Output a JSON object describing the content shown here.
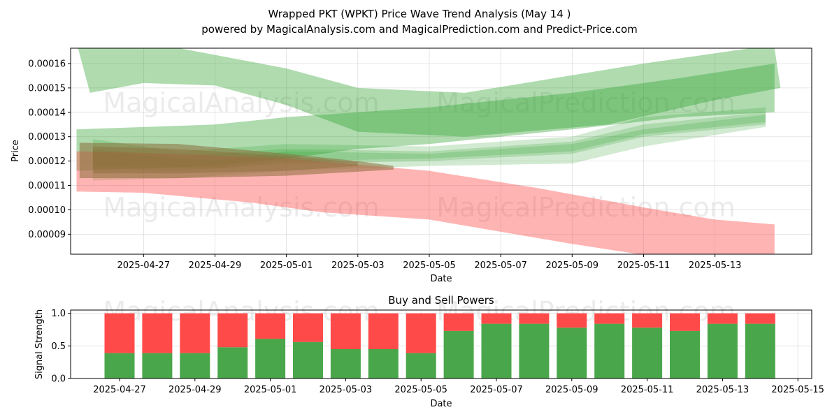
{
  "title_line1": "Wrapped PKT (WPKT) Price Wave Trend Analysis (May 14 )",
  "title_line2": "powered by MagicalAnalysis.com and MagicalPrediction.com and Predict-Price.com",
  "watermarks": [
    "MagicalAnalysis.com",
    "MagicalPrediction.com"
  ],
  "colors": {
    "green": "#2ca02c",
    "red": "#ff4d4d",
    "brown": "#8b6d3a",
    "bar_green": "#4aa64a",
    "bar_red": "#ff4a4a"
  },
  "chart_data": [
    {
      "type": "area",
      "xlabel": "Date",
      "ylabel": "Price",
      "x_ticks": [
        "2025-04-27",
        "2025-04-29",
        "2025-05-01",
        "2025-05-03",
        "2025-05-05",
        "2025-05-07",
        "2025-05-09",
        "2025-05-11",
        "2025-05-13"
      ],
      "y_ticks": [
        "0.00009",
        "0.00010",
        "0.00011",
        "0.00012",
        "0.00013",
        "0.00014",
        "0.00015",
        "0.00016"
      ],
      "xlim": [
        "2025-04-24T23:00",
        "2025-05-15T17:00"
      ],
      "ylim": [
        8.18e-05,
        0.0001663
      ],
      "grid": true,
      "bands": [
        {
          "color": "green",
          "opacity": 0.38,
          "upper": [
            [
              "2025-04-25T04:00",
              0.0001663
            ],
            [
              "2025-04-28T00:00",
              0.0001663
            ],
            [
              "2025-05-01T00:00",
              0.000158
            ],
            [
              "2025-05-03T00:00",
              0.00015
            ],
            [
              "2025-05-06T00:00",
              0.000148
            ],
            [
              "2025-05-11T00:00",
              0.00016
            ],
            [
              "2025-05-14T00:00",
              0.0001663
            ],
            [
              "2025-05-14T16:00",
              0.0001663
            ],
            [
              "2025-05-14T20:00",
              0.00015
            ]
          ],
          "lower": [
            [
              "2025-05-14T20:00",
              0.00015
            ],
            [
              "2025-05-13T00:00",
              0.000145
            ],
            [
              "2025-05-10T00:00",
              0.000135
            ],
            [
              "2025-05-06T00:00",
              0.00013
            ],
            [
              "2025-05-03T00:00",
              0.000132
            ],
            [
              "2025-05-01T00:00",
              0.000143
            ],
            [
              "2025-04-29T00:00",
              0.000151
            ],
            [
              "2025-04-27T00:00",
              0.000152
            ],
            [
              "2025-04-25T12:00",
              0.000148
            ]
          ]
        },
        {
          "color": "green",
          "opacity": 0.38,
          "upper": [
            [
              "2025-04-25T03:00",
              0.000133
            ],
            [
              "2025-04-29T00:00",
              0.000135
            ],
            [
              "2025-05-01T00:00",
              0.000138
            ],
            [
              "2025-05-05T00:00",
              0.000142
            ],
            [
              "2025-05-09T00:00",
              0.000148
            ],
            [
              "2025-05-12T00:00",
              0.000154
            ],
            [
              "2025-05-14T16:00",
              0.00016
            ]
          ],
          "lower": [
            [
              "2025-05-14T16:00",
              0.00014
            ],
            [
              "2025-05-12T00:00",
              0.000138
            ],
            [
              "2025-05-09T00:00",
              0.000133
            ],
            [
              "2025-05-07T00:00",
              0.00013
            ],
            [
              "2025-05-05T00:00",
              0.000127
            ],
            [
              "2025-05-03T00:00",
              0.000125
            ],
            [
              "2025-05-01T00:00",
              0.000121
            ],
            [
              "2025-04-29T00:00",
              0.000118
            ],
            [
              "2025-04-25T03:00",
              0.000116
            ]
          ]
        },
        {
          "color": "green",
          "opacity": 0.22,
          "upper": [
            [
              "2025-04-25T14:00",
              0.000129
            ],
            [
              "2025-04-28T00:00",
              0.000124
            ],
            [
              "2025-05-01T00:00",
              0.000127
            ],
            [
              "2025-05-05T00:00",
              0.000126
            ],
            [
              "2025-05-09T00:00",
              0.00013
            ],
            [
              "2025-05-11T00:00",
              0.000138
            ],
            [
              "2025-05-14T10:00",
              0.000142
            ]
          ],
          "lower": [
            [
              "2025-05-14T10:00",
              0.000134
            ],
            [
              "2025-05-11T00:00",
              0.000126
            ],
            [
              "2025-05-09T00:00",
              0.000119
            ],
            [
              "2025-05-05T00:00",
              0.000118
            ],
            [
              "2025-05-01T00:00",
              0.000116
            ],
            [
              "2025-04-28T00:00",
              0.000113
            ],
            [
              "2025-04-25T14:00",
              0.000112
            ]
          ]
        },
        {
          "color": "green",
          "opacity": 0.22,
          "upper": [
            [
              "2025-04-25T14:00",
              0.000125
            ],
            [
              "2025-04-28T00:00",
              0.000122
            ],
            [
              "2025-05-01T00:00",
              0.000125
            ],
            [
              "2025-05-05T00:00",
              0.000124
            ],
            [
              "2025-05-09T00:00",
              0.000128
            ],
            [
              "2025-05-11T00:00",
              0.000135
            ],
            [
              "2025-05-14T10:00",
              0.00014
            ]
          ],
          "lower": [
            [
              "2025-05-14T10:00",
              0.000135
            ],
            [
              "2025-05-11T00:00",
              0.00013
            ],
            [
              "2025-05-09T00:00",
              0.000123
            ],
            [
              "2025-05-05T00:00",
              0.00012
            ],
            [
              "2025-05-01T00:00",
              0.000119
            ],
            [
              "2025-04-28T00:00",
              0.000116
            ],
            [
              "2025-04-25T14:00",
              0.000117
            ]
          ]
        },
        {
          "color": "green",
          "opacity": 0.22,
          "upper": [
            [
              "2025-04-25T14:00",
              0.000124
            ],
            [
              "2025-04-29T00:00",
              0.00012
            ],
            [
              "2025-05-01T00:00",
              0.000124
            ],
            [
              "2025-05-05T00:00",
              0.000123
            ],
            [
              "2025-05-09T00:00",
              0.000127
            ],
            [
              "2025-05-11T00:00",
              0.000133
            ],
            [
              "2025-05-14T10:00",
              0.000139
            ]
          ],
          "lower": [
            [
              "2025-05-14T10:00",
              0.000136
            ],
            [
              "2025-05-11T00:00",
              0.000131
            ],
            [
              "2025-05-09T00:00",
              0.000124
            ],
            [
              "2025-05-05T00:00",
              0.000121
            ],
            [
              "2025-05-01T00:00",
              0.00012
            ],
            [
              "2025-04-29T00:00",
              0.000117
            ],
            [
              "2025-04-25T14:00",
              0.000118
            ]
          ]
        },
        {
          "color": "red",
          "opacity": 0.42,
          "upper": [
            [
              "2025-04-25T03:00",
              0.000124
            ],
            [
              "2025-04-28T00:00",
              0.000123
            ],
            [
              "2025-05-01T00:00",
              0.000121
            ],
            [
              "2025-05-05T00:00",
              0.000116
            ],
            [
              "2025-05-08T00:00",
              0.000109
            ],
            [
              "2025-05-11T00:00",
              0.000101
            ],
            [
              "2025-05-13T00:00",
              9.6e-05
            ],
            [
              "2025-05-14T16:00",
              9.4e-05
            ]
          ],
          "lower": [
            [
              "2025-05-14T16:00",
              8e-05
            ],
            [
              "2025-05-11T00:00",
              8.15e-05
            ],
            [
              "2025-05-09T00:00",
              8.6e-05
            ],
            [
              "2025-05-07T00:00",
              9.1e-05
            ],
            [
              "2025-05-05T00:00",
              9.6e-05
            ],
            [
              "2025-05-02T00:00",
              9.9e-05
            ],
            [
              "2025-04-30T00:00",
              0.000103
            ],
            [
              "2025-04-27T00:00",
              0.000107
            ],
            [
              "2025-04-25T03:00",
              0.0001075
            ]
          ]
        },
        {
          "color": "brown",
          "opacity": 0.55,
          "upper": [
            [
              "2025-04-25T05:00",
              0.0001275
            ],
            [
              "2025-04-28T00:00",
              0.000127
            ],
            [
              "2025-05-01T00:00",
              0.000123
            ],
            [
              "2025-05-03T00:00",
              0.00012
            ],
            [
              "2025-05-04T00:00",
              0.000118
            ]
          ],
          "lower": [
            [
              "2025-05-04T00:00",
              0.0001165
            ],
            [
              "2025-05-01T00:00",
              0.000114
            ],
            [
              "2025-04-28T00:00",
              0.000113
            ],
            [
              "2025-04-25T05:00",
              0.000113
            ]
          ]
        },
        {
          "color": "brown",
          "opacity": 0.45,
          "upper": [
            [
              "2025-04-25T14:00",
              0.000126
            ],
            [
              "2025-04-28T00:00",
              0.000125
            ],
            [
              "2025-05-01T00:00",
              0.000122
            ],
            [
              "2025-05-03T00:00",
              0.0001195
            ]
          ],
          "lower": [
            [
              "2025-05-03T00:00",
              0.000118
            ],
            [
              "2025-05-01T00:00",
              0.000116
            ],
            [
              "2025-04-28T00:00",
              0.000115
            ],
            [
              "2025-04-25T14:00",
              0.000115
            ]
          ]
        }
      ]
    },
    {
      "type": "bar",
      "title": "Buy and Sell Powers",
      "xlabel": "Date",
      "ylabel": "Signal Strength",
      "x_ticks": [
        "2025-04-27",
        "2025-04-29",
        "2025-05-01",
        "2025-05-03",
        "2025-05-05",
        "2025-05-07",
        "2025-05-09",
        "2025-05-11",
        "2025-05-13",
        "2025-05-15"
      ],
      "y_ticks": [
        "0.0",
        "0.5",
        "1.0"
      ],
      "ylim": [
        0,
        1.05
      ],
      "grid": true,
      "categories": [
        "2025-04-27",
        "2025-04-28",
        "2025-04-29",
        "2025-04-30",
        "2025-05-01",
        "2025-05-02",
        "2025-05-03",
        "2025-05-04",
        "2025-05-05",
        "2025-05-06",
        "2025-05-07",
        "2025-05-08",
        "2025-05-09",
        "2025-05-10",
        "2025-05-11",
        "2025-05-12",
        "2025-05-13",
        "2025-05-14"
      ],
      "series": [
        {
          "color": "bar_green",
          "values": [
            0.39,
            0.39,
            0.39,
            0.48,
            0.61,
            0.56,
            0.45,
            0.45,
            0.39,
            0.73,
            0.84,
            0.84,
            0.78,
            0.84,
            0.78,
            0.73,
            0.84,
            0.84
          ]
        },
        {
          "color": "bar_red",
          "values": [
            0.61,
            0.61,
            0.61,
            0.52,
            0.39,
            0.44,
            0.55,
            0.55,
            0.61,
            0.27,
            0.16,
            0.16,
            0.22,
            0.16,
            0.22,
            0.27,
            0.16,
            0.16
          ]
        }
      ]
    }
  ]
}
